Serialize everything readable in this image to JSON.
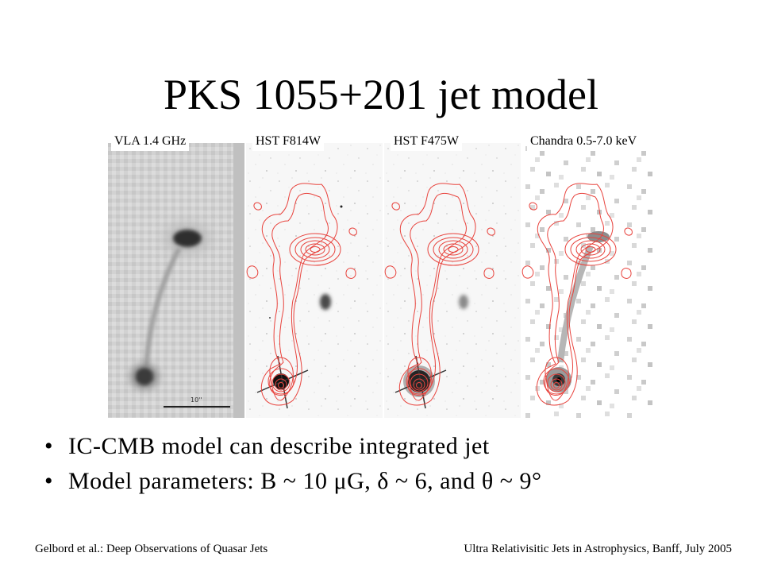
{
  "slide": {
    "title": "PKS 1055+201 jet model",
    "panels": [
      {
        "label": "VLA 1.4 GHz"
      },
      {
        "label": "HST F814W"
      },
      {
        "label": "HST F475W"
      },
      {
        "label": "Chandra 0.5-7.0 keV"
      }
    ],
    "scale_bar_label": "10''",
    "bullets": [
      "IC-CMB model can describe integrated jet",
      "Model parameters: B ~ 10 μG, δ ~ 6, and θ ~ 9°"
    ],
    "bullet_marker": "•",
    "footer_left": "Gelbord et al.: Deep Observations of Quasar Jets",
    "footer_right": "Ultra Relativisitic Jets in Astrophysics, Banff, July 2005"
  },
  "colors": {
    "contour": "#e8433d",
    "background": "#ffffff",
    "text": "#000000"
  }
}
